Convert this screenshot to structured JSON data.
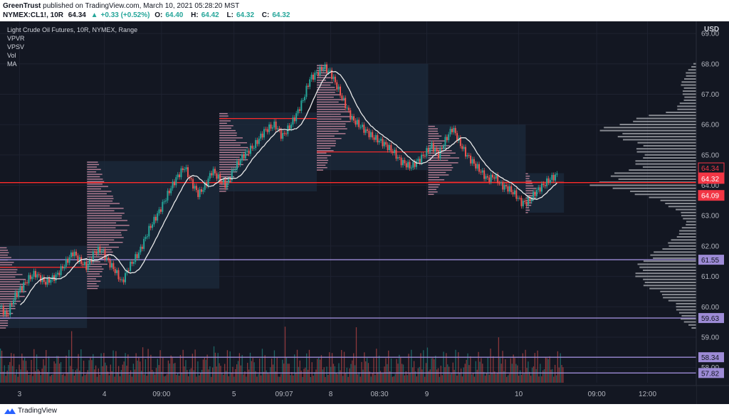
{
  "header": {
    "author": "GreenTrust",
    "published_text": "published on TradingView.com, March 10, 2021 05:28:20 MST",
    "symbol": "NYMEX:CL1!, 10R",
    "last": "64.34",
    "change_arrow": "▲",
    "change": "+0.33 (+0.52%)",
    "open_label": "O:",
    "open": "64.40",
    "high_label": "H:",
    "high": "64.42",
    "low_label": "L:",
    "low": "64.32",
    "close_label": "C:",
    "close": "64.32"
  },
  "legend": {
    "title": "Light Crude Oil Futures, 10R, NYMEX, Range",
    "indicators": [
      "VPVR",
      "VPSV",
      "Vol",
      "MA"
    ]
  },
  "footer": {
    "brand": "TradingView"
  },
  "colors": {
    "background": "#131722",
    "grid": "#1e2230",
    "up": "#26a69a",
    "down": "#ef5350",
    "ma": "#e8e8e8",
    "poc": "#ff2b2b",
    "level": "#9d8bd6",
    "profile_left": "#d58fa6",
    "profile_right": "#a5a7ae",
    "box": "#1c2b3c"
  },
  "chart_data": {
    "type": "candlestick",
    "symbol": "NYMEX:CL1!",
    "title": "Light Crude Oil Futures, 10R, NYMEX, Range",
    "currency_label": "USD",
    "ylim": [
      57.5,
      69.4
    ],
    "y_ticks": [
      "69.00",
      "68.00",
      "67.00",
      "66.00",
      "65.00",
      "64.00",
      "63.00",
      "62.00",
      "61.00",
      "60.00",
      "59.00",
      "58.00"
    ],
    "x_ticks": [
      "3",
      "4",
      "09:00",
      "5",
      "09:07",
      "8",
      "08:30",
      "9",
      "10",
      "09:00",
      "12:00"
    ],
    "price_path": [
      [
        0,
        60.0
      ],
      [
        0.01,
        59.7
      ],
      [
        0.02,
        60.3
      ],
      [
        0.04,
        60.9
      ],
      [
        0.05,
        61.1
      ],
      [
        0.065,
        60.8
      ],
      [
        0.08,
        61.0
      ],
      [
        0.09,
        61.3
      ],
      [
        0.105,
        61.8
      ],
      [
        0.115,
        61.5
      ],
      [
        0.125,
        61.3
      ],
      [
        0.135,
        61.8
      ],
      [
        0.145,
        61.9
      ],
      [
        0.155,
        61.5
      ],
      [
        0.165,
        61.2
      ],
      [
        0.175,
        60.8
      ],
      [
        0.185,
        61.3
      ],
      [
        0.2,
        61.8
      ],
      [
        0.215,
        62.6
      ],
      [
        0.23,
        63.2
      ],
      [
        0.245,
        63.9
      ],
      [
        0.255,
        64.3
      ],
      [
        0.265,
        64.6
      ],
      [
        0.275,
        64.1
      ],
      [
        0.285,
        63.7
      ],
      [
        0.295,
        64.0
      ],
      [
        0.305,
        64.5
      ],
      [
        0.315,
        64.2
      ],
      [
        0.325,
        64.0
      ],
      [
        0.335,
        64.5
      ],
      [
        0.35,
        65.0
      ],
      [
        0.365,
        65.3
      ],
      [
        0.38,
        65.8
      ],
      [
        0.395,
        66.0
      ],
      [
        0.405,
        65.6
      ],
      [
        0.415,
        65.9
      ],
      [
        0.425,
        66.3
      ],
      [
        0.435,
        66.8
      ],
      [
        0.445,
        67.5
      ],
      [
        0.455,
        67.7
      ],
      [
        0.465,
        67.9
      ],
      [
        0.475,
        67.7
      ],
      [
        0.485,
        67.2
      ],
      [
        0.495,
        66.7
      ],
      [
        0.505,
        66.2
      ],
      [
        0.52,
        65.9
      ],
      [
        0.535,
        65.6
      ],
      [
        0.55,
        65.4
      ],
      [
        0.565,
        65.1
      ],
      [
        0.575,
        64.8
      ],
      [
        0.59,
        64.6
      ],
      [
        0.605,
        64.9
      ],
      [
        0.62,
        65.3
      ],
      [
        0.63,
        65.0
      ],
      [
        0.64,
        65.5
      ],
      [
        0.65,
        65.9
      ],
      [
        0.66,
        65.4
      ],
      [
        0.67,
        65.0
      ],
      [
        0.685,
        64.6
      ],
      [
        0.7,
        64.2
      ],
      [
        0.71,
        64.3
      ],
      [
        0.72,
        64.0
      ],
      [
        0.73,
        63.9
      ],
      [
        0.74,
        63.7
      ],
      [
        0.75,
        63.4
      ],
      [
        0.76,
        63.5
      ],
      [
        0.77,
        63.8
      ],
      [
        0.78,
        64.0
      ],
      [
        0.79,
        64.2
      ],
      [
        0.8,
        64.34
      ]
    ],
    "session_boxes": [
      {
        "t0": 0.0,
        "t1": 0.125,
        "low": 59.3,
        "high": 62.0
      },
      {
        "t0": 0.125,
        "t1": 0.315,
        "low": 60.6,
        "high": 64.8
      },
      {
        "t0": 0.315,
        "t1": 0.455,
        "low": 63.8,
        "high": 66.4
      },
      {
        "t0": 0.455,
        "t1": 0.615,
        "low": 64.5,
        "high": 68.0
      },
      {
        "t0": 0.615,
        "t1": 0.755,
        "low": 63.7,
        "high": 66.0
      },
      {
        "t0": 0.755,
        "t1": 0.81,
        "low": 63.1,
        "high": 64.4
      }
    ],
    "poc_lines": [
      {
        "t0": 0.0,
        "t1": 0.125,
        "price": 61.3
      },
      {
        "t0": 0.315,
        "t1": 0.455,
        "price": 66.2
      },
      {
        "t0": 0.455,
        "t1": 0.615,
        "price": 65.1
      },
      {
        "t0": 0.615,
        "t1": 0.81,
        "price": 64.1
      }
    ],
    "horizontal_levels": [
      {
        "price": 64.09,
        "label": "64.09",
        "color": "#ff2b2b"
      },
      {
        "price": 61.55,
        "label": "61.55",
        "color": "#9d8bd6"
      },
      {
        "price": 59.63,
        "label": "59.63",
        "color": "#9d8bd6"
      },
      {
        "price": 58.34,
        "label": "58.34",
        "color": "#9d8bd6"
      },
      {
        "price": 57.82,
        "label": "57.82",
        "color": "#9d8bd6"
      }
    ],
    "price_labels": [
      {
        "price": 64.34,
        "label": "64.34",
        "style": "outline"
      },
      {
        "price": 64.32,
        "label": "64.32",
        "style": "filled"
      },
      {
        "price": 64.09,
        "label": "64.09",
        "style": "filled"
      }
    ],
    "volume_profile_right": {
      "price_step": 0.1,
      "profile": [
        [
          59.3,
          0.05
        ],
        [
          59.6,
          0.15
        ],
        [
          60.0,
          0.2
        ],
        [
          60.4,
          0.35
        ],
        [
          60.8,
          0.55
        ],
        [
          61.2,
          0.6
        ],
        [
          61.6,
          0.5
        ],
        [
          62.0,
          0.3
        ],
        [
          62.4,
          0.18
        ],
        [
          62.8,
          0.1
        ],
        [
          63.2,
          0.2
        ],
        [
          63.6,
          0.45
        ],
        [
          64.0,
          1.0
        ],
        [
          64.3,
          0.85
        ],
        [
          64.6,
          0.6
        ],
        [
          65.0,
          0.55
        ],
        [
          65.4,
          0.6
        ],
        [
          65.8,
          0.95
        ],
        [
          66.1,
          0.7
        ],
        [
          66.5,
          0.2
        ],
        [
          66.9,
          0.12
        ],
        [
          67.3,
          0.15
        ],
        [
          67.7,
          0.1
        ],
        [
          68.0,
          0.03
        ]
      ]
    }
  }
}
